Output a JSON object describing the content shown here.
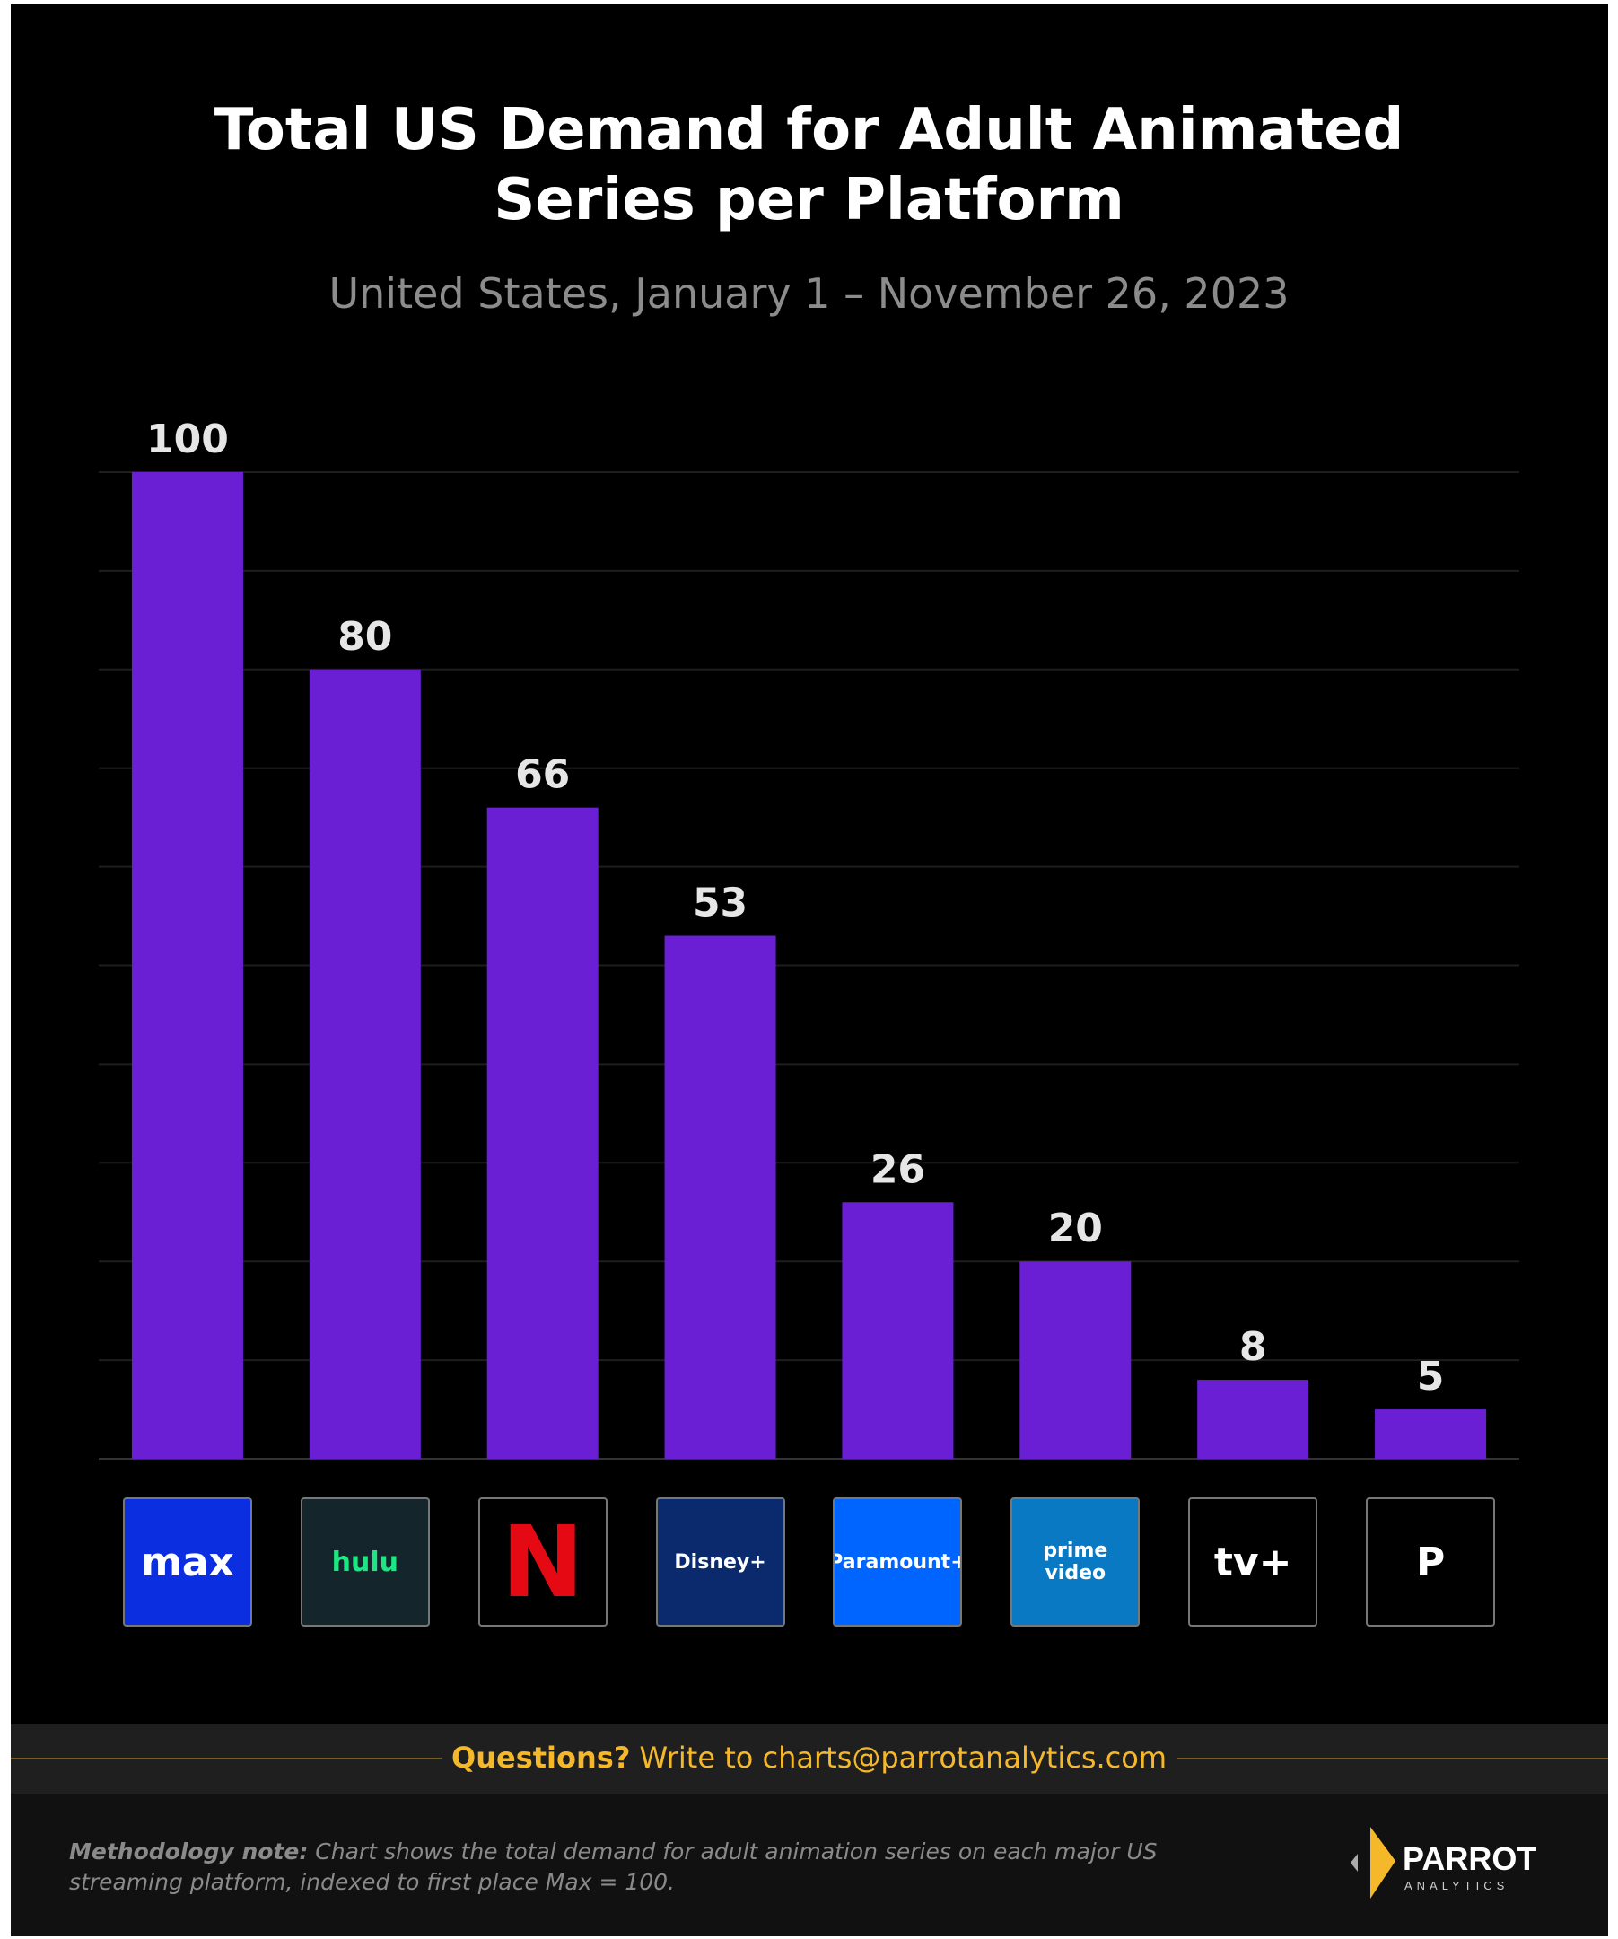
{
  "title_line1": "Total US Demand for Adult Animated",
  "title_line2": "Series per Platform",
  "subtitle": "United States, January 1 – November 26, 2023",
  "chart_data": {
    "type": "bar",
    "title": "Total US Demand for Adult Animated Series per Platform",
    "subtitle": "United States, January 1 – November 26, 2023",
    "categories": [
      "Max",
      "Hulu",
      "Netflix",
      "Disney+",
      "Paramount+",
      "Prime Video",
      "Apple TV+",
      "Peacock"
    ],
    "values": [
      100,
      80,
      66,
      53,
      26,
      20,
      8,
      5
    ],
    "ylim": [
      0,
      100
    ],
    "grid": true,
    "bar_color": "#6a1fd4",
    "data_labels": true
  },
  "logos": [
    {
      "text": "max",
      "bg": "#0a2ee0",
      "fg": "#ffffff"
    },
    {
      "text": "hulu",
      "bg": "#14262c",
      "fg": "#1ce783"
    },
    {
      "text": "N",
      "bg": "#000000",
      "fg": "#e50914"
    },
    {
      "text": "Disney+",
      "bg": "#0b2a6e",
      "fg": "#ffffff"
    },
    {
      "text": "Paramount+",
      "bg": "#0064ff",
      "fg": "#ffffff"
    },
    {
      "text": "prime video",
      "bg": "#0a79c4",
      "fg": "#ffffff"
    },
    {
      "text": "tv+",
      "bg": "#000000",
      "fg": "#ffffff"
    },
    {
      "text": "P",
      "bg": "#000000",
      "fg": "#ffffff"
    }
  ],
  "footer": {
    "questions_bold": "Questions?",
    "questions_rest": " Write to charts@parrotanalytics.com",
    "method_bold": "Methodology note:",
    "method_text": " Chart shows the total demand for adult animation series on each major US streaming platform, indexed to first place Max = 100.",
    "brand": "PARROT",
    "brand_sub": "ANALYTICS",
    "accent": "#f5b82a"
  }
}
